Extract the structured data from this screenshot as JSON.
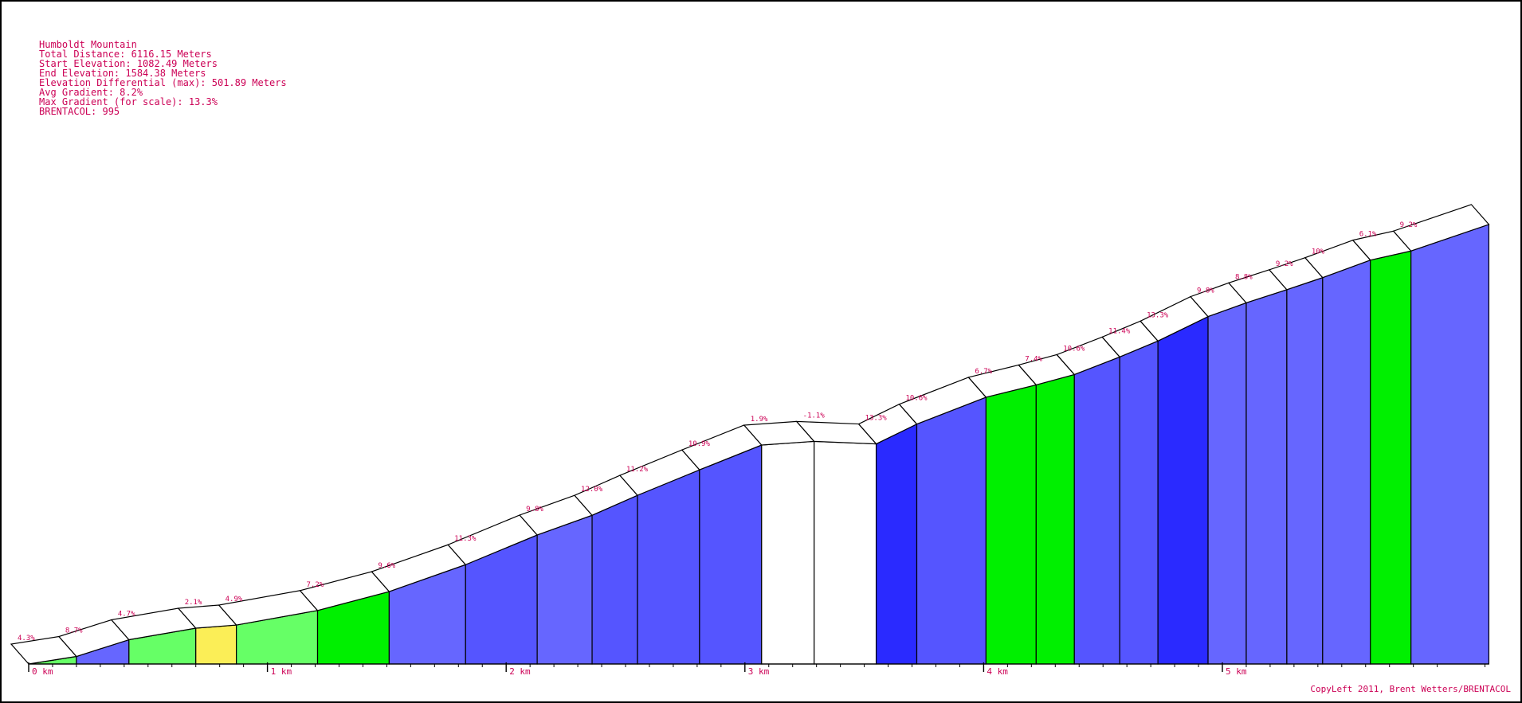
{
  "info": {
    "name": "Humboldt Mountain",
    "lines": [
      "Total Distance: 6116.15 Meters",
      "Start Elevation: 1082.49 Meters",
      "End Elevation: 1584.38 Meters",
      "Elevation Differential (max): 501.89 Meters",
      "Avg Gradient: 8.2%",
      "Max Gradient (for scale): 13.3%",
      "BRENTACOL: 995"
    ]
  },
  "copyright": "CopyLeft 2011, Brent Wetters/BRENTACOL",
  "colors": {
    "frame": "#000000",
    "text": "#cc0055",
    "legend_by_gradient": {
      "below_0": "#ffffff",
      "0_to_2": "#ffffff",
      "2_to_3": "#fbee57",
      "3_to_6": "#66ff66",
      "6_to_8": "#00f000",
      "8_to_10": "#6666ff",
      "10_to_12": "#5555ff",
      "12_plus": "#2a2aff"
    }
  },
  "chart_data": {
    "type": "area",
    "title": "Humboldt Mountain",
    "xlabel": "",
    "ylabel": "",
    "x_unit": "km",
    "x_ticks": [
      "0 km",
      "1 km",
      "2 km",
      "3 km",
      "4 km",
      "5 km"
    ],
    "xlim": [
      0,
      6116.15
    ],
    "ylim": [
      1082.49,
      1584.38
    ],
    "grid": false,
    "segments": [
      {
        "start_m": 0,
        "end_m": 200,
        "gradient": "4.3%",
        "start_elev": 1082.5,
        "end_elev": 1091.1,
        "color": "#66ff66"
      },
      {
        "start_m": 200,
        "end_m": 420,
        "gradient": "8.7%",
        "start_elev": 1091.1,
        "end_elev": 1110.2,
        "color": "#6666ff"
      },
      {
        "start_m": 420,
        "end_m": 700,
        "gradient": "4.7%",
        "start_elev": 1110.2,
        "end_elev": 1123.4,
        "color": "#66ff66"
      },
      {
        "start_m": 700,
        "end_m": 870,
        "gradient": "2.1%",
        "start_elev": 1123.4,
        "end_elev": 1127.0,
        "color": "#fbee57"
      },
      {
        "start_m": 870,
        "end_m": 1210,
        "gradient": "4.9%",
        "start_elev": 1127.0,
        "end_elev": 1143.6,
        "color": "#66ff66"
      },
      {
        "start_m": 1210,
        "end_m": 1510,
        "gradient": "7.2%",
        "start_elev": 1143.6,
        "end_elev": 1165.2,
        "color": "#00f000"
      },
      {
        "start_m": 1510,
        "end_m": 1830,
        "gradient": "9.6%",
        "start_elev": 1165.2,
        "end_elev": 1195.9,
        "color": "#6666ff"
      },
      {
        "start_m": 1830,
        "end_m": 2130,
        "gradient": "11.3%",
        "start_elev": 1195.9,
        "end_elev": 1229.8,
        "color": "#5555ff"
      },
      {
        "start_m": 2130,
        "end_m": 2360,
        "gradient": "9.8%",
        "start_elev": 1229.8,
        "end_elev": 1252.3,
        "color": "#6666ff"
      },
      {
        "start_m": 2360,
        "end_m": 2550,
        "gradient": "12.0%",
        "start_elev": 1252.3,
        "end_elev": 1275.1,
        "color": "#5555ff"
      },
      {
        "start_m": 2550,
        "end_m": 2810,
        "gradient": "11.2%",
        "start_elev": 1275.1,
        "end_elev": 1304.2,
        "color": "#5555ff"
      },
      {
        "start_m": 2810,
        "end_m": 3070,
        "gradient": "10.9%",
        "start_elev": 1304.2,
        "end_elev": 1332.5,
        "color": "#5555ff"
      },
      {
        "start_m": 3070,
        "end_m": 3290,
        "gradient": "1.9%",
        "start_elev": 1332.5,
        "end_elev": 1336.7,
        "color": "#ffffff"
      },
      {
        "start_m": 3290,
        "end_m": 3550,
        "gradient": "-1.1%",
        "start_elev": 1336.7,
        "end_elev": 1333.8,
        "color": "#ffffff"
      },
      {
        "start_m": 3550,
        "end_m": 3720,
        "gradient": "13.3%",
        "start_elev": 1333.8,
        "end_elev": 1356.4,
        "color": "#2a2aff"
      },
      {
        "start_m": 3720,
        "end_m": 4010,
        "gradient": "10.6%",
        "start_elev": 1356.4,
        "end_elev": 1387.1,
        "color": "#5555ff"
      },
      {
        "start_m": 4010,
        "end_m": 4220,
        "gradient": "6.7%",
        "start_elev": 1387.1,
        "end_elev": 1401.2,
        "color": "#00f000"
      },
      {
        "start_m": 4220,
        "end_m": 4380,
        "gradient": "7.4%",
        "start_elev": 1401.2,
        "end_elev": 1413.0,
        "color": "#00f000"
      },
      {
        "start_m": 4380,
        "end_m": 4570,
        "gradient": "10.6%",
        "start_elev": 1413.0,
        "end_elev": 1433.1,
        "color": "#5555ff"
      },
      {
        "start_m": 4570,
        "end_m": 4730,
        "gradient": "11.4%",
        "start_elev": 1433.1,
        "end_elev": 1451.3,
        "color": "#5555ff"
      },
      {
        "start_m": 4730,
        "end_m": 4940,
        "gradient": "13.3%",
        "start_elev": 1451.3,
        "end_elev": 1479.2,
        "color": "#2a2aff"
      },
      {
        "start_m": 4940,
        "end_m": 5100,
        "gradient": "9.8%",
        "start_elev": 1479.2,
        "end_elev": 1494.9,
        "color": "#6666ff"
      },
      {
        "start_m": 5100,
        "end_m": 5270,
        "gradient": "8.8%",
        "start_elev": 1494.9,
        "end_elev": 1509.9,
        "color": "#6666ff"
      },
      {
        "start_m": 5270,
        "end_m": 5420,
        "gradient": "9.2%",
        "start_elev": 1509.9,
        "end_elev": 1523.7,
        "color": "#6666ff"
      },
      {
        "start_m": 5420,
        "end_m": 5620,
        "gradient": "10%",
        "start_elev": 1523.7,
        "end_elev": 1543.7,
        "color": "#6666ff"
      },
      {
        "start_m": 5620,
        "end_m": 5790,
        "gradient": "6.1%",
        "start_elev": 1543.7,
        "end_elev": 1554.1,
        "color": "#00f000"
      },
      {
        "start_m": 5790,
        "end_m": 6116.15,
        "gradient": "9.2%",
        "start_elev": 1554.1,
        "end_elev": 1584.4,
        "color": "#6666ff"
      }
    ]
  }
}
